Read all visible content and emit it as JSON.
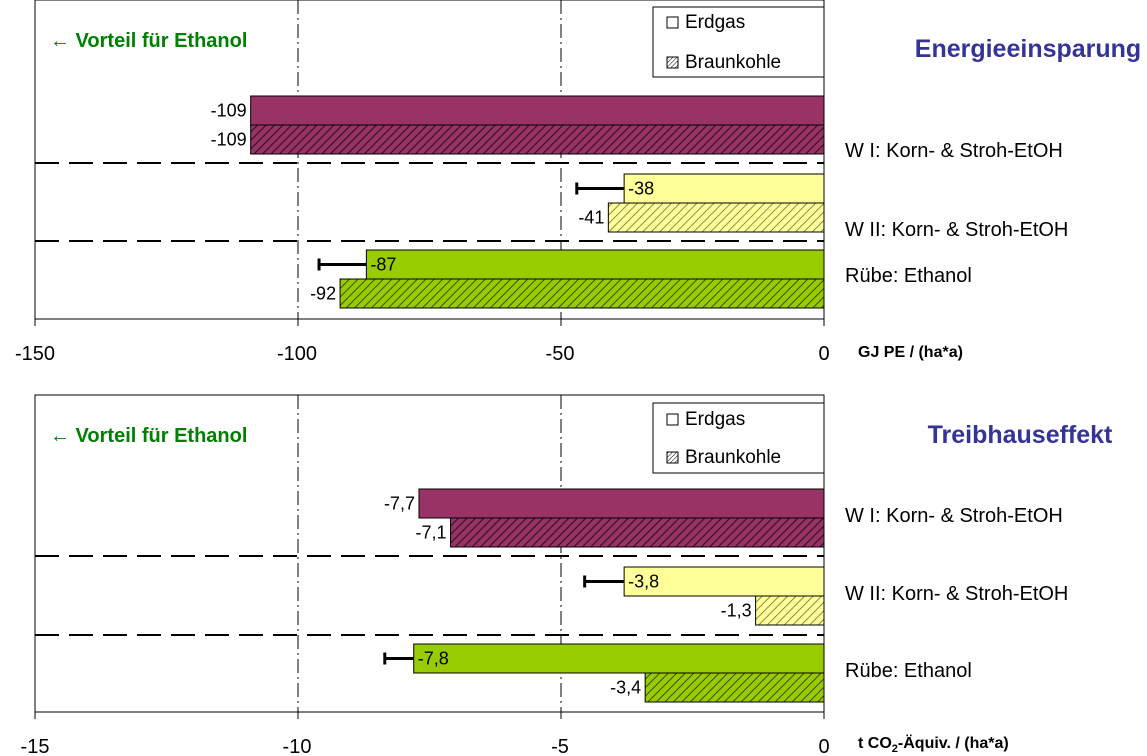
{
  "colors": {
    "wI_erdgas": "#993366",
    "wII_erdgas": "#ffff99",
    "ruebe_erdgas": "#99cc00",
    "advantage_text": "#008000",
    "section_title": "#333399",
    "outline": "#000000"
  },
  "legend": {
    "erdgas": "Erdgas",
    "braunkohle": "Braunkohle"
  },
  "chart_data": [
    {
      "type": "bar",
      "orientation": "horizontal",
      "title": "Energieeinsparung",
      "annotation": "← Vorteil für Ethanol",
      "unit_label": "GJ PE / (ha*a)",
      "xlim": [
        -150,
        0
      ],
      "xticks": [
        -150,
        -100,
        -50,
        0
      ],
      "xtick_labels": [
        "-150",
        "-100",
        "-50",
        "0"
      ],
      "grid": "vertical dash-dot at -100 and -50",
      "legend_position": "top-right",
      "categories": [
        "W I: Korn- & Stroh-EtOH",
        "W II: Korn- & Stroh-EtOH",
        "Rübe: Ethanol"
      ],
      "series": [
        {
          "name": "Erdgas",
          "values": [
            -109,
            -38,
            -87
          ],
          "labels": [
            "-109",
            "-38",
            "-87"
          ],
          "error_low": [
            null,
            -47,
            -96
          ]
        },
        {
          "name": "Braunkohle",
          "values": [
            -109,
            -41,
            -92
          ],
          "labels": [
            "-109",
            "-41",
            "-92"
          ]
        }
      ]
    },
    {
      "type": "bar",
      "orientation": "horizontal",
      "title": "Treibhauseffekt",
      "annotation": "← Vorteil für Ethanol",
      "unit_label_main": "t CO",
      "unit_label_sub": "2",
      "unit_label_rest": "-Äquiv. / (ha*a)",
      "xlim": [
        -15,
        0
      ],
      "xticks": [
        -15,
        -10,
        -5,
        0
      ],
      "xtick_labels": [
        "-15",
        "-10",
        "-5",
        "0"
      ],
      "grid": "vertical dash-dot at -10 and -5",
      "legend_position": "top-right",
      "categories": [
        "W I: Korn- & Stroh-EtOH",
        "W II: Korn- & Stroh-EtOH",
        "Rübe: Ethanol"
      ],
      "series": [
        {
          "name": "Erdgas",
          "values": [
            -7.7,
            -3.8,
            -7.8
          ],
          "labels": [
            "-7,7",
            "-3,8",
            "-7,8"
          ],
          "error_low": [
            null,
            -4.55,
            -8.35
          ]
        },
        {
          "name": "Braunkohle",
          "values": [
            -7.1,
            -1.3,
            -3.4
          ],
          "labels": [
            "-7,1",
            "-1,3",
            "-3,4"
          ]
        }
      ]
    }
  ]
}
